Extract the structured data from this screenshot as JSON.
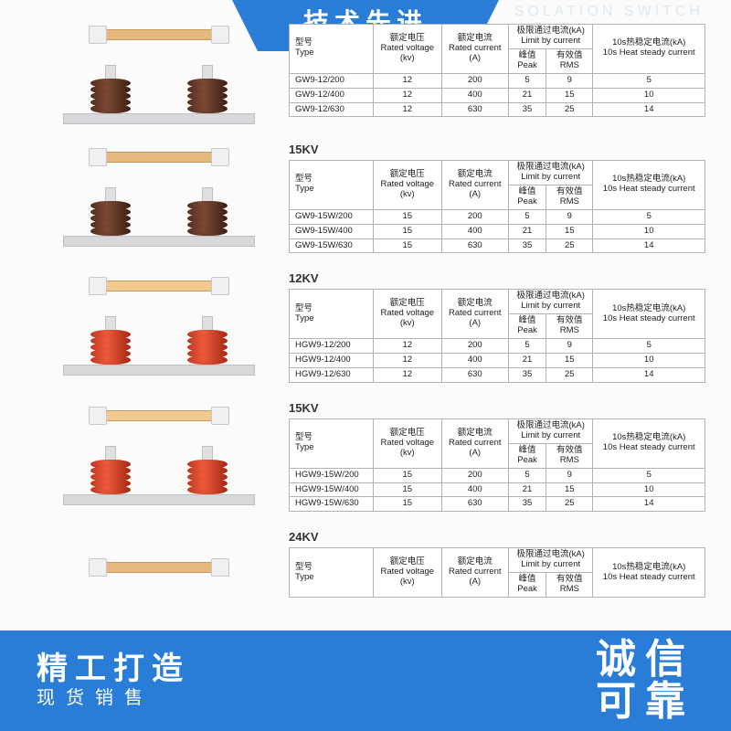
{
  "page": {
    "title_partial": "SOLATION SWITCH",
    "watermark_partial": ""
  },
  "ribbon": {
    "top": "技术先进"
  },
  "banner": {
    "left_line1": "精工打造",
    "left_line2": "现货销售",
    "right_line1": "诚信",
    "right_line2": "可靠"
  },
  "style": {
    "accent": "#2a7dd6",
    "table_border": "#b3b3b3",
    "brown_insulator": "#3a1e12",
    "red_insulator": "#a02712",
    "arm_copper": "#e7b87e",
    "base_grey": "#d9d9dc",
    "font_small_pt": 9.5,
    "font_kv_pt": 13,
    "font_ribbon_pt": 28
  },
  "table_headers": {
    "type": {
      "cn": "型号",
      "en": "Type"
    },
    "voltage": {
      "cn": "额定电压",
      "en": "Rated voltage",
      "unit": "(kv)"
    },
    "current": {
      "cn": "额定电流",
      "en": "Rated current",
      "unit": "(A)"
    },
    "limit": {
      "cn": "极限通过电流(kA)",
      "en": "Limit by current"
    },
    "peak": {
      "cn": "峰值",
      "en": "Peak"
    },
    "rms": {
      "cn": "有效值",
      "en": "RMS"
    },
    "heat": {
      "cn": "10s热稳定电流(kA)",
      "en": "10s Heat steady current"
    }
  },
  "sections": [
    {
      "kv_label": "",
      "insulator_color": "brown",
      "has_base": true,
      "rows": [
        {
          "type": "GW9-12/200",
          "voltage": 12,
          "current": 200,
          "peak": 5,
          "rms": 9,
          "heat": 5
        },
        {
          "type": "GW9-12/400",
          "voltage": 12,
          "current": 400,
          "peak": 21,
          "rms": 15,
          "heat": 10
        },
        {
          "type": "GW9-12/630",
          "voltage": 12,
          "current": 630,
          "peak": 35,
          "rms": 25,
          "heat": 14
        }
      ]
    },
    {
      "kv_label": "15KV",
      "insulator_color": "brown",
      "has_base": true,
      "rows": [
        {
          "type": "GW9-15W/200",
          "voltage": 15,
          "current": 200,
          "peak": 5,
          "rms": 9,
          "heat": 5
        },
        {
          "type": "GW9-15W/400",
          "voltage": 15,
          "current": 400,
          "peak": 21,
          "rms": 15,
          "heat": 10
        },
        {
          "type": "GW9-15W/630",
          "voltage": 15,
          "current": 630,
          "peak": 35,
          "rms": 25,
          "heat": 14
        }
      ]
    },
    {
      "kv_label": "12KV",
      "insulator_color": "red",
      "has_base": true,
      "rows": [
        {
          "type": "HGW9-12/200",
          "voltage": 12,
          "current": 200,
          "peak": 5,
          "rms": 9,
          "heat": 5
        },
        {
          "type": "HGW9-12/400",
          "voltage": 12,
          "current": 400,
          "peak": 21,
          "rms": 15,
          "heat": 10
        },
        {
          "type": "HGW9-12/630",
          "voltage": 12,
          "current": 630,
          "peak": 35,
          "rms": 25,
          "heat": 14
        }
      ]
    },
    {
      "kv_label": "15KV",
      "insulator_color": "red",
      "has_base": true,
      "rows": [
        {
          "type": "HGW9-15W/200",
          "voltage": 15,
          "current": 200,
          "peak": 5,
          "rms": 9,
          "heat": 5
        },
        {
          "type": "HGW9-15W/400",
          "voltage": 15,
          "current": 400,
          "peak": 21,
          "rms": 15,
          "heat": 10
        },
        {
          "type": "HGW9-15W/630",
          "voltage": 15,
          "current": 630,
          "peak": 35,
          "rms": 25,
          "heat": 14
        }
      ]
    },
    {
      "kv_label": "24KV",
      "insulator_color": "none",
      "has_base": false,
      "rows": []
    }
  ]
}
